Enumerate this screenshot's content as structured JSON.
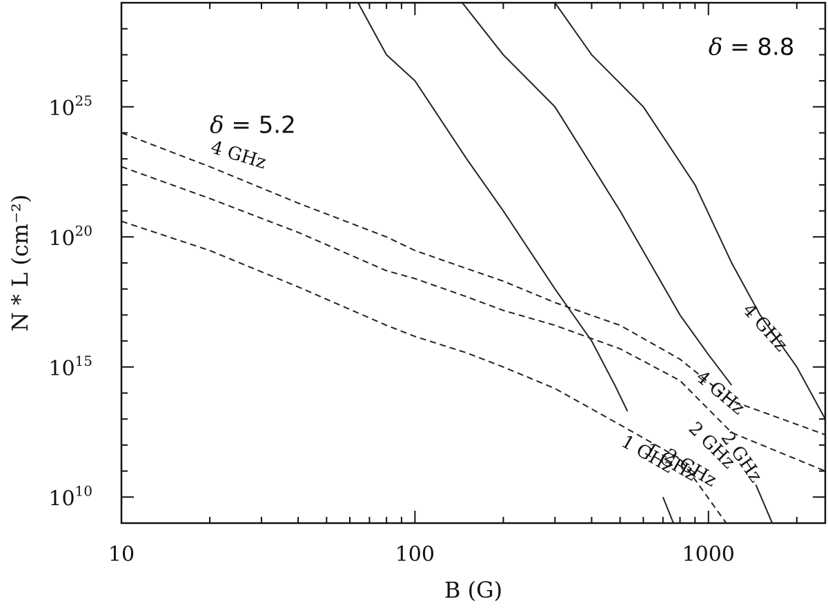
{
  "chart_data": {
    "type": "line",
    "xlabel": "B (G)",
    "ylabel": "N * L (cm⁻²)",
    "x_scale": "log",
    "y_scale": "log",
    "xlim": [
      10,
      2500
    ],
    "ylim": [
      1000000000.0,
      1e+29
    ],
    "grid": false,
    "x_ticks": [
      {
        "value": 10,
        "label": "10"
      },
      {
        "value": 100,
        "label": "100"
      },
      {
        "value": 1000,
        "label": "1000"
      }
    ],
    "y_ticks": [
      {
        "value": 10000000000.0,
        "base": "10",
        "exp": "10"
      },
      {
        "value": 1000000000000000.0,
        "base": "10",
        "exp": "15"
      },
      {
        "value": 1e+20,
        "base": "10",
        "exp": "20"
      },
      {
        "value": 1e+25,
        "base": "10",
        "exp": "25"
      }
    ],
    "annotations": [
      {
        "delta": "δ",
        "text": " = 5.2",
        "x": 20,
        "y": 1e+24
      },
      {
        "delta": "δ",
        "text": " = 8.8",
        "x": 1000,
        "y": 1e+27
      }
    ],
    "series": [
      {
        "style": "dashed",
        "delta": 5.2,
        "label": "4  GHz",
        "x": [
          10,
          20,
          40,
          80,
          100,
          140,
          200,
          300,
          500,
          800,
          1200,
          2500
        ],
        "y": [
          1e+24,
          5e+22,
          2e+21,
          1e+20,
          3e+19,
          8e+18,
          2e+18,
          3e+17,
          4e+16,
          2000000000000000.0,
          50000000000000.0,
          2500000000000.0
        ]
      },
      {
        "style": "dashed",
        "delta": 5.2,
        "label": "2  GHz",
        "x": [
          10,
          20,
          40,
          80,
          100,
          150,
          200,
          300,
          500,
          800,
          1200,
          2500
        ],
        "y": [
          5e+22,
          3e+21,
          1.5e+20,
          5e+18,
          2.5e+18,
          5e+17,
          1.5e+17,
          4e+16,
          5000000000000000.0,
          300000000000000.0,
          3000000000000.0,
          100000000000.0
        ]
      },
      {
        "style": "dashed",
        "delta": 5.2,
        "label": "1  GHz",
        "x": [
          10,
          20,
          40,
          80,
          100,
          150,
          200,
          300,
          500,
          800,
          1150
        ],
        "y": [
          4e+20,
          3e+19,
          1.2e+18,
          4e+16,
          1.5e+16,
          3500000000000000.0,
          1000000000000000.0,
          150000000000000.0,
          6000000000000.0,
          300000000000.0,
          1000000000.0
        ]
      },
      {
        "style": "solid",
        "delta": 8.8,
        "label": "1  GHz",
        "x": [
          64,
          80,
          100,
          150,
          200,
          300,
          400,
          480,
          530
        ],
        "y": [
          1e+29,
          1e+27,
          1e+26,
          1e+23,
          1e+21,
          1e+18,
          1e+16,
          200000000000000.0,
          20000000000000.0
        ]
      },
      {
        "style": "solid",
        "delta": 8.8,
        "label": "2  GHz",
        "x": [
          145,
          200,
          300,
          500,
          800,
          1000,
          1200
        ],
        "y": [
          1e+29,
          1e+27,
          1e+25,
          1e+21,
          1e+17,
          3000000000000000.0,
          200000000000000.0
        ]
      },
      {
        "style": "solid",
        "delta": 8.8,
        "label": "4  GHz",
        "x": [
          300,
          400,
          600,
          900,
          1200,
          1500,
          2000,
          2500
        ],
        "y": [
          1e+29,
          1e+27,
          1e+25,
          1e+22,
          1e+19,
          1e+17,
          1000000000000000.0,
          10000000000000.0
        ]
      },
      {
        "style": "solid",
        "delta": 8.8,
        "label": "",
        "x": [
          700,
          760
        ],
        "y": [
          10000000000.0,
          1000000000.0
        ]
      },
      {
        "style": "solid",
        "delta": 8.8,
        "label": "",
        "x": [
          1450,
          1650
        ],
        "y": [
          30000000000.0,
          1000000000.0
        ]
      }
    ],
    "curve_labels": [
      {
        "text": "4  GHz",
        "x": 20,
        "y": 1.8e+23,
        "angle": 17
      },
      {
        "text": "1  GHz",
        "x": 500,
        "y": 1000000000000.0,
        "angle": 30
      },
      {
        "text": "1  GHz",
        "x": 600,
        "y": 500000000000.0,
        "angle": 30
      },
      {
        "text": "2  GHz",
        "x": 700,
        "y": 300000000000.0,
        "angle": 30
      },
      {
        "text": "2  GHz",
        "x": 850,
        "y": 4000000000000.0,
        "angle": 45
      },
      {
        "text": "2  GHz",
        "x": 1100,
        "y": 2000000000000.0,
        "angle": 55
      },
      {
        "text": "4  GHz",
        "x": 900,
        "y": 350000000000000.0,
        "angle": 40
      },
      {
        "text": "4  GHz",
        "x": 1300,
        "y": 1.5e+17,
        "angle": 48
      }
    ]
  }
}
